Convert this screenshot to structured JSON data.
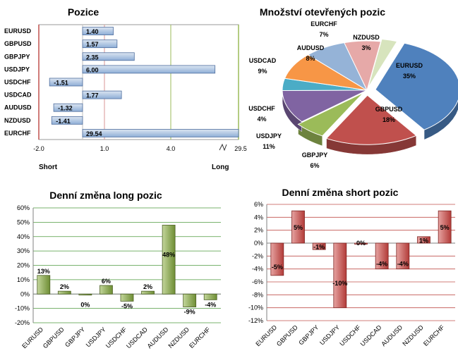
{
  "chart_data": [
    {
      "type": "bar",
      "orientation": "horizontal",
      "title": "Pozice",
      "categories": [
        "EURUSD",
        "GBPUSD",
        "GBPJPY",
        "USDJPY",
        "USDCHF",
        "USDCAD",
        "AUDUSD",
        "NZDUSD",
        "EURCHF"
      ],
      "values": [
        1.4,
        1.57,
        2.35,
        6.0,
        -1.51,
        1.77,
        -1.32,
        -1.41,
        29.54
      ],
      "value_labels": [
        "1.40",
        "1.57",
        "2.35",
        "6.00",
        "-1.51",
        "1.77",
        "-1.32",
        "-1.41",
        "29.54"
      ],
      "tick_labels": [
        "-2.0",
        "1.0",
        "4.0",
        "29.5"
      ],
      "xlim": [
        -2.0,
        29.5
      ],
      "broken_axis_at": 7.0,
      "left_label": "Short",
      "right_label": "Long",
      "colors": {
        "bar": "#9fb7d4",
        "zero_line": "#c0504d",
        "grid": "#9bbb59"
      }
    },
    {
      "type": "pie",
      "title": "Množství otevřených pozic",
      "slices": [
        {
          "label": "EURUSD",
          "value": 35,
          "pct": "35%",
          "color": "#4f81bd"
        },
        {
          "label": "GBPUSD",
          "value": 18,
          "pct": "18%",
          "color": "#c0504d"
        },
        {
          "label": "GBPJPY",
          "value": 6,
          "pct": "6%",
          "color": "#9bbb59"
        },
        {
          "label": "USDJPY",
          "value": 11,
          "pct": "11%",
          "color": "#8064a2"
        },
        {
          "label": "USDCHF",
          "value": 4,
          "pct": "4%",
          "color": "#4bacc6"
        },
        {
          "label": "USDCAD",
          "value": 9,
          "pct": "9%",
          "color": "#f79646"
        },
        {
          "label": "AUDUSD",
          "value": 8,
          "pct": "8%",
          "color": "#95b3d7"
        },
        {
          "label": "EURCHF",
          "value": 7,
          "pct": "7%",
          "color": "#e6a9a8"
        },
        {
          "label": "NZDUSD",
          "value": 3,
          "pct": "3%",
          "color": "#d7e4bd"
        }
      ]
    },
    {
      "type": "bar",
      "title": "Denní změna long pozic",
      "categories": [
        "EURUSD",
        "GBPUSD",
        "GBPJPY",
        "USDJPY",
        "USDCHF",
        "USDCAD",
        "AUDUSD",
        "NZDUSD",
        "EURCHF"
      ],
      "values": [
        13,
        2,
        0,
        6,
        -5,
        2,
        48,
        -9,
        -4
      ],
      "value_labels": [
        "13%",
        "2%",
        "0%",
        "6%",
        "-5%",
        "2%",
        "48%",
        "-9%",
        "-4%"
      ],
      "ylim": [
        -20,
        60
      ],
      "yticks": [
        -20,
        -10,
        0,
        10,
        20,
        30,
        40,
        50,
        60
      ],
      "ytick_labels": [
        "-20%",
        "-10%",
        "0%",
        "10%",
        "20%",
        "30%",
        "40%",
        "50%",
        "60%"
      ],
      "grid": true,
      "colors": {
        "bar": "#77933c",
        "grid": "#4e9a3e"
      }
    },
    {
      "type": "bar",
      "title": "Denní změna short pozic",
      "categories": [
        "EURUSD",
        "GBPUSD",
        "GBPJPY",
        "USDJPY",
        "USDCHF",
        "USDCAD",
        "AUDUSD",
        "NZDUSD",
        "EURCHF"
      ],
      "values": [
        -5,
        5,
        -1,
        -10,
        0,
        -4,
        -4,
        1,
        5
      ],
      "value_labels": [
        "-5%",
        "5%",
        "-1%",
        "-10%",
        "0%",
        "-4%",
        "-4%",
        "1%",
        "5%"
      ],
      "ylim": [
        -12,
        6
      ],
      "yticks": [
        -12,
        -10,
        -8,
        -6,
        -4,
        -2,
        0,
        2,
        4,
        6
      ],
      "ytick_labels": [
        "-12%",
        "-10%",
        "-8%",
        "-6%",
        "-4%",
        "-2%",
        "0%",
        "2%",
        "4%",
        "6%"
      ],
      "grid": true,
      "colors": {
        "bar": "#c0504d",
        "grid": "#c0504d"
      }
    }
  ]
}
